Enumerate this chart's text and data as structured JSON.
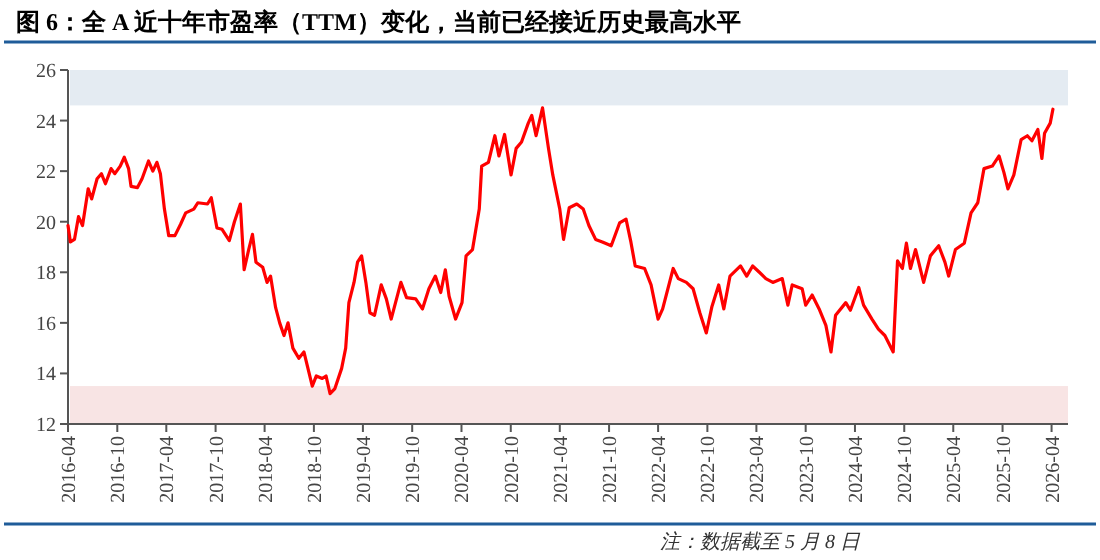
{
  "chart_data": {
    "type": "line",
    "title": "图 6：全 A 近十年市盈率（TTM）变化，当前已经接近历史最高水平",
    "annotations": [
      "注：数据截至 5 月 8 日"
    ],
    "xlim": [
      "2016-04",
      "2026-06"
    ],
    "ylim": [
      12,
      26
    ],
    "yticks": [
      12,
      14,
      16,
      18,
      20,
      22,
      24,
      26
    ],
    "xticks": [
      "2016-04",
      "2016-10",
      "2017-04",
      "2017-10",
      "2018-04",
      "2018-10",
      "2019-04",
      "2019-10",
      "2020-04",
      "2020-10",
      "2021-04",
      "2021-10",
      "2022-04",
      "2022-10",
      "2023-04",
      "2023-10",
      "2024-04",
      "2024-10",
      "2025-04",
      "2025-10",
      "2026-04"
    ],
    "grid": false,
    "marker": "none",
    "line_style": "solid",
    "bands": [
      {
        "axis": "y",
        "from": 24.6,
        "to": 26,
        "color": "#e4ebf2"
      },
      {
        "axis": "y",
        "from": 12,
        "to": 13.5,
        "color": "#f8e4e4"
      }
    ],
    "series": [
      {
        "color": "#ff0000",
        "x": [
          "2016-04-01",
          "2016-04-10",
          "2016-04-25",
          "2016-05-10",
          "2016-05-25",
          "2016-06-15",
          "2016-06-28",
          "2016-07-18",
          "2016-08-03",
          "2016-08-18",
          "2016-09-08",
          "2016-09-22",
          "2016-10-12",
          "2016-10-27",
          "2016-11-12",
          "2016-11-21",
          "2016-12-15",
          "2017-01-01",
          "2017-01-25",
          "2017-02-10",
          "2017-02-25",
          "2017-03-10",
          "2017-03-25",
          "2017-04-10",
          "2017-05-03",
          "2017-05-24",
          "2017-06-12",
          "2017-07-12",
          "2017-07-27",
          "2017-09-01",
          "2017-09-15",
          "2017-10-06",
          "2017-10-25",
          "2017-11-21",
          "2017-12-10",
          "2018-01-01",
          "2018-01-15",
          "2018-02-01",
          "2018-02-15",
          "2018-02-28",
          "2018-03-25",
          "2018-04-10",
          "2018-04-23",
          "2018-05-12",
          "2018-05-27",
          "2018-06-12",
          "2018-06-27",
          "2018-07-15",
          "2018-08-06",
          "2018-08-25",
          "2018-09-25",
          "2018-10-10",
          "2018-11-01",
          "2018-11-15",
          "2018-11-30",
          "2018-12-18",
          "2019-01-12",
          "2019-01-27",
          "2019-02-08",
          "2019-02-27",
          "2019-03-12",
          "2019-03-27",
          "2019-04-12",
          "2019-04-27",
          "2019-05-14",
          "2019-06-08",
          "2019-06-27",
          "2019-07-15",
          "2019-08-20",
          "2019-09-10",
          "2019-10-14",
          "2019-11-08",
          "2019-12-02",
          "2019-12-26",
          "2020-01-15",
          "2020-02-01",
          "2020-02-15",
          "2020-03-10",
          "2020-04-03",
          "2020-04-18",
          "2020-05-12",
          "2020-06-06",
          "2020-06-15",
          "2020-07-10",
          "2020-08-03",
          "2020-08-18",
          "2020-09-08",
          "2020-10-02",
          "2020-10-21",
          "2020-11-10",
          "2020-12-05",
          "2020-12-18",
          "2021-01-03",
          "2021-01-27",
          "2021-02-18",
          "2021-03-06",
          "2021-04-01",
          "2021-04-15",
          "2021-05-06",
          "2021-06-03",
          "2021-06-27",
          "2021-07-18",
          "2021-08-12",
          "2021-09-06",
          "2021-10-09",
          "2021-11-09",
          "2021-12-03",
          "2021-12-21",
          "2022-01-06",
          "2022-02-10",
          "2022-03-06",
          "2022-04-01",
          "2022-04-18",
          "2022-05-27",
          "2022-06-15",
          "2022-07-15",
          "2022-08-09",
          "2022-09-03",
          "2022-09-27",
          "2022-10-18",
          "2022-11-12",
          "2022-12-01",
          "2022-12-24",
          "2023-02-01",
          "2023-02-24",
          "2023-03-18",
          "2023-04-12",
          "2023-05-06",
          "2023-06-01",
          "2023-07-06",
          "2023-07-27",
          "2023-08-12",
          "2023-09-18",
          "2023-10-01",
          "2023-10-25",
          "2023-11-20",
          "2023-12-15",
          "2024-01-03",
          "2024-01-20",
          "2024-02-27",
          "2024-03-15",
          "2024-04-15",
          "2024-05-03",
          "2024-06-03",
          "2024-06-27",
          "2024-07-21",
          "2024-08-21",
          "2024-09-06",
          "2024-09-24",
          "2024-10-09",
          "2024-10-24",
          "2024-11-12",
          "2024-12-12",
          "2025-01-06",
          "2025-02-06",
          "2025-03-01",
          "2025-03-15",
          "2025-04-09",
          "2025-05-12",
          "2025-06-06",
          "2025-07-01",
          "2025-07-24",
          "2025-08-24",
          "2025-09-18",
          "2025-10-06",
          "2025-10-21",
          "2025-11-12",
          "2025-12-09",
          "2026-01-01",
          "2026-01-18",
          "2026-02-09",
          "2026-02-24",
          "2026-03-06",
          "2026-03-27",
          "2026-04-06"
        ],
        "values": [
          19.85,
          19.2,
          19.3,
          20.2,
          19.85,
          21.3,
          20.9,
          21.7,
          21.9,
          21.5,
          22.1,
          21.9,
          22.2,
          22.55,
          22.1,
          21.4,
          21.35,
          21.7,
          22.4,
          22.0,
          22.35,
          21.9,
          20.5,
          19.45,
          19.45,
          19.9,
          20.35,
          20.5,
          20.75,
          20.7,
          20.95,
          19.75,
          19.7,
          19.25,
          20.0,
          20.7,
          18.1,
          18.9,
          19.5,
          18.4,
          18.2,
          17.6,
          17.85,
          16.6,
          16.0,
          15.5,
          16.0,
          15.0,
          14.6,
          14.85,
          13.5,
          13.9,
          13.8,
          13.9,
          13.2,
          13.4,
          14.2,
          15.0,
          16.8,
          17.6,
          18.4,
          18.65,
          17.6,
          16.4,
          16.3,
          17.5,
          16.95,
          16.15,
          17.6,
          17.0,
          16.95,
          16.55,
          17.35,
          17.85,
          17.2,
          18.1,
          17.05,
          16.15,
          16.8,
          18.65,
          18.9,
          20.5,
          22.2,
          22.35,
          23.4,
          22.6,
          23.45,
          21.85,
          22.9,
          23.15,
          23.9,
          24.2,
          23.4,
          24.5,
          22.9,
          21.85,
          20.5,
          19.3,
          20.55,
          20.7,
          20.5,
          19.85,
          19.3,
          19.2,
          19.05,
          19.95,
          20.1,
          19.2,
          18.25,
          18.15,
          17.5,
          16.15,
          16.55,
          18.15,
          17.75,
          17.6,
          17.35,
          16.4,
          15.6,
          16.65,
          17.5,
          16.55,
          17.85,
          18.25,
          17.85,
          18.25,
          18.0,
          17.75,
          17.6,
          17.75,
          16.7,
          17.5,
          17.35,
          16.7,
          17.1,
          16.55,
          15.9,
          14.85,
          16.3,
          16.8,
          16.5,
          17.4,
          16.7,
          16.15,
          15.75,
          15.5,
          14.85,
          18.45,
          18.15,
          19.15,
          18.15,
          18.9,
          17.6,
          18.65,
          19.05,
          18.4,
          17.85,
          18.9,
          19.15,
          20.35,
          20.75,
          22.1,
          22.2,
          22.6,
          21.95,
          21.3,
          21.85,
          23.25,
          23.4,
          23.2,
          23.65,
          22.5,
          23.5,
          23.9,
          24.45
        ]
      }
    ]
  }
}
